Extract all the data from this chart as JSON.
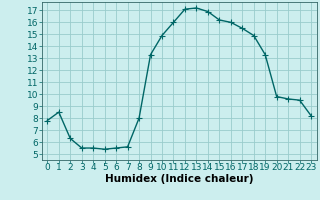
{
  "x": [
    0,
    1,
    2,
    3,
    4,
    5,
    6,
    7,
    8,
    9,
    10,
    11,
    12,
    13,
    14,
    15,
    16,
    17,
    18,
    19,
    20,
    21,
    22,
    23
  ],
  "y": [
    7.8,
    8.5,
    6.3,
    5.5,
    5.5,
    5.4,
    5.5,
    5.6,
    8.0,
    13.3,
    14.9,
    16.0,
    17.1,
    17.2,
    16.9,
    16.2,
    16.0,
    15.5,
    14.9,
    13.3,
    9.8,
    9.6,
    9.5,
    8.2
  ],
  "line_color": "#006666",
  "marker": "+",
  "marker_size": 4,
  "bg_color": "#cceeee",
  "grid_color": "#99cccc",
  "xlabel": "Humidex (Indice chaleur)",
  "xlim": [
    -0.5,
    23.5
  ],
  "ylim": [
    4.5,
    17.7
  ],
  "xticks": [
    0,
    1,
    2,
    3,
    4,
    5,
    6,
    7,
    8,
    9,
    10,
    11,
    12,
    13,
    14,
    15,
    16,
    17,
    18,
    19,
    20,
    21,
    22,
    23
  ],
  "yticks": [
    5,
    6,
    7,
    8,
    9,
    10,
    11,
    12,
    13,
    14,
    15,
    16,
    17
  ],
  "xlabel_fontsize": 7.5,
  "tick_fontsize": 6.5,
  "linewidth": 1.0,
  "markeredgewidth": 0.8
}
